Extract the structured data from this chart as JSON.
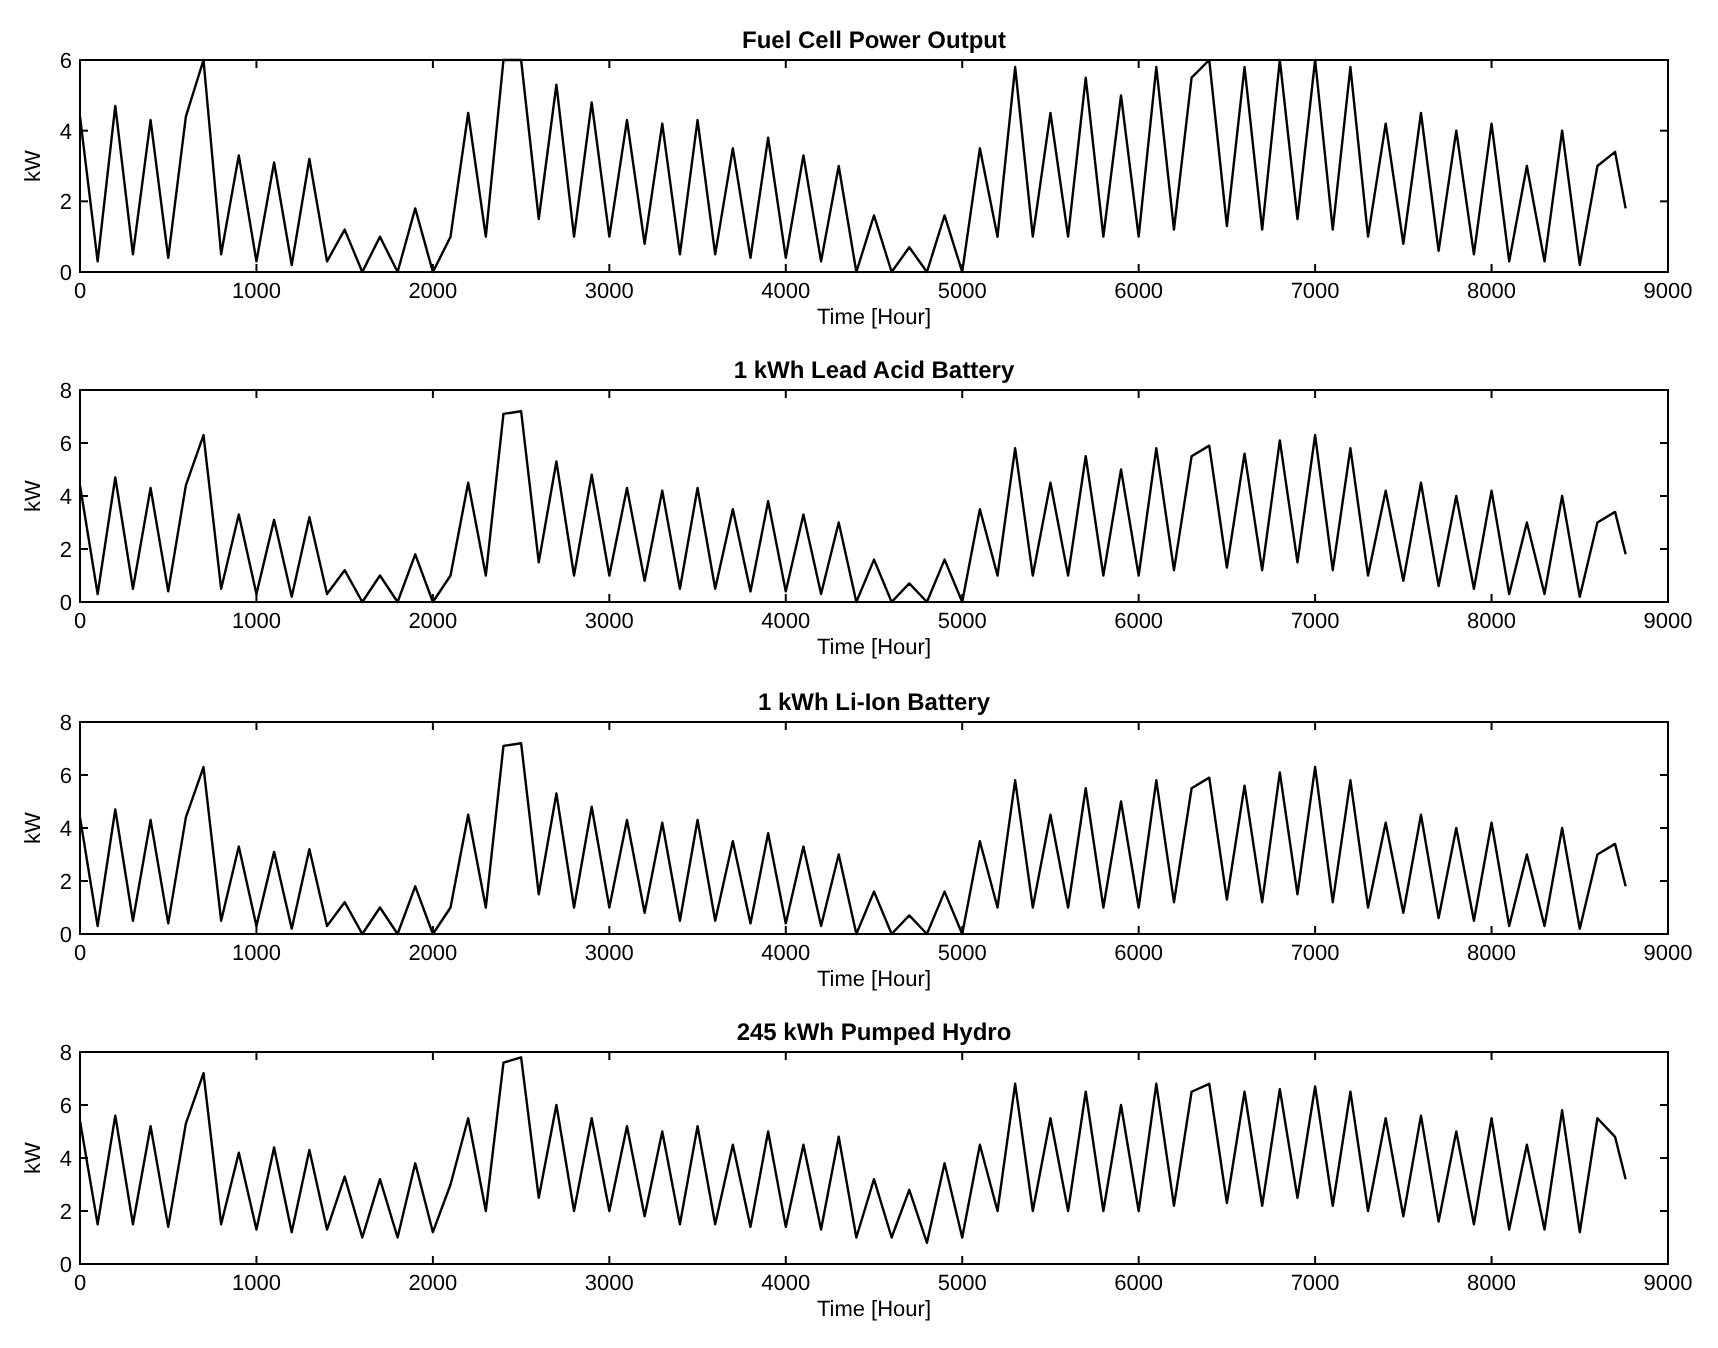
{
  "chart_data": [
    {
      "type": "line",
      "title": "Fuel Cell Power Output",
      "xlabel": "Time [Hour]",
      "ylabel": "kW",
      "xlim": [
        0,
        9000
      ],
      "xticks": [
        0,
        1000,
        2000,
        3000,
        4000,
        5000,
        6000,
        7000,
        8000,
        9000
      ],
      "ylim": [
        0,
        6
      ],
      "yticks": [
        0,
        2,
        4,
        6
      ],
      "x": [
        0,
        100,
        200,
        300,
        400,
        500,
        600,
        700,
        800,
        900,
        1000,
        1100,
        1200,
        1300,
        1400,
        1500,
        1600,
        1700,
        1800,
        1900,
        2000,
        2100,
        2200,
        2300,
        2400,
        2500,
        2600,
        2700,
        2800,
        2900,
        3000,
        3100,
        3200,
        3300,
        3400,
        3500,
        3600,
        3700,
        3800,
        3900,
        4000,
        4100,
        4200,
        4300,
        4400,
        4500,
        4600,
        4700,
        4800,
        4900,
        5000,
        5100,
        5200,
        5300,
        5400,
        5500,
        5600,
        5700,
        5800,
        5900,
        6000,
        6100,
        6200,
        6300,
        6400,
        6500,
        6600,
        6700,
        6800,
        6900,
        7000,
        7100,
        7200,
        7300,
        7400,
        7500,
        7600,
        7700,
        7800,
        7900,
        8000,
        8100,
        8200,
        8300,
        8400,
        8500,
        8600,
        8700,
        8760
      ],
      "series": [
        {
          "color": "#000000",
          "values": [
            4.4,
            0.3,
            4.7,
            0.5,
            4.3,
            0.4,
            4.4,
            6.0,
            0.5,
            3.3,
            0.3,
            3.1,
            0.2,
            3.2,
            0.3,
            1.2,
            0,
            1.0,
            0,
            1.8,
            0,
            1.0,
            4.5,
            1.0,
            6.0,
            6.0,
            1.5,
            5.3,
            1.0,
            4.8,
            1.0,
            4.3,
            0.8,
            4.2,
            0.5,
            4.3,
            0.5,
            3.5,
            0.4,
            3.8,
            0.4,
            3.3,
            0.3,
            3.0,
            0,
            1.6,
            0,
            0.7,
            0,
            1.6,
            0,
            3.5,
            1.0,
            5.8,
            1.0,
            4.5,
            1.0,
            5.5,
            1.0,
            5.0,
            1.0,
            5.8,
            1.2,
            5.5,
            6.0,
            1.3,
            5.8,
            1.2,
            6.0,
            1.5,
            6.0,
            1.2,
            5.8,
            1.0,
            4.2,
            0.8,
            4.5,
            0.6,
            4.0,
            0.5,
            4.2,
            0.3,
            3.0,
            0.3,
            4.0,
            0.2,
            3.0,
            3.4,
            1.8
          ]
        }
      ]
    },
    {
      "type": "line",
      "title": "1 kWh Lead Acid Battery",
      "xlabel": "Time [Hour]",
      "ylabel": "kW",
      "xlim": [
        0,
        9000
      ],
      "xticks": [
        0,
        1000,
        2000,
        3000,
        4000,
        5000,
        6000,
        7000,
        8000,
        9000
      ],
      "ylim": [
        0,
        8
      ],
      "yticks": [
        0,
        2,
        4,
        6,
        8
      ],
      "x": [
        0,
        100,
        200,
        300,
        400,
        500,
        600,
        700,
        800,
        900,
        1000,
        1100,
        1200,
        1300,
        1400,
        1500,
        1600,
        1700,
        1800,
        1900,
        2000,
        2100,
        2200,
        2300,
        2400,
        2500,
        2600,
        2700,
        2800,
        2900,
        3000,
        3100,
        3200,
        3300,
        3400,
        3500,
        3600,
        3700,
        3800,
        3900,
        4000,
        4100,
        4200,
        4300,
        4400,
        4500,
        4600,
        4700,
        4800,
        4900,
        5000,
        5100,
        5200,
        5300,
        5400,
        5500,
        5600,
        5700,
        5800,
        5900,
        6000,
        6100,
        6200,
        6300,
        6400,
        6500,
        6600,
        6700,
        6800,
        6900,
        7000,
        7100,
        7200,
        7300,
        7400,
        7500,
        7600,
        7700,
        7800,
        7900,
        8000,
        8100,
        8200,
        8300,
        8400,
        8500,
        8600,
        8700,
        8760
      ],
      "series": [
        {
          "color": "#000000",
          "values": [
            4.4,
            0.3,
            4.7,
            0.5,
            4.3,
            0.4,
            4.4,
            6.3,
            0.5,
            3.3,
            0.3,
            3.1,
            0.2,
            3.2,
            0.3,
            1.2,
            0,
            1.0,
            0,
            1.8,
            0,
            1.0,
            4.5,
            1.0,
            7.1,
            7.2,
            1.5,
            5.3,
            1.0,
            4.8,
            1.0,
            4.3,
            0.8,
            4.2,
            0.5,
            4.3,
            0.5,
            3.5,
            0.4,
            3.8,
            0.4,
            3.3,
            0.3,
            3.0,
            0,
            1.6,
            0,
            0.7,
            0,
            1.6,
            0,
            3.5,
            1.0,
            5.8,
            1.0,
            4.5,
            1.0,
            5.5,
            1.0,
            5.0,
            1.0,
            5.8,
            1.2,
            5.5,
            5.9,
            1.3,
            5.6,
            1.2,
            6.1,
            1.5,
            6.3,
            1.2,
            5.8,
            1.0,
            4.2,
            0.8,
            4.5,
            0.6,
            4.0,
            0.5,
            4.2,
            0.3,
            3.0,
            0.3,
            4.0,
            0.2,
            3.0,
            3.4,
            1.8
          ]
        }
      ]
    },
    {
      "type": "line",
      "title": "1 kWh Li-Ion Battery",
      "xlabel": "Time [Hour]",
      "ylabel": "kW",
      "xlim": [
        0,
        9000
      ],
      "xticks": [
        0,
        1000,
        2000,
        3000,
        4000,
        5000,
        6000,
        7000,
        8000,
        9000
      ],
      "ylim": [
        0,
        8
      ],
      "yticks": [
        0,
        2,
        4,
        6,
        8
      ],
      "x": [
        0,
        100,
        200,
        300,
        400,
        500,
        600,
        700,
        800,
        900,
        1000,
        1100,
        1200,
        1300,
        1400,
        1500,
        1600,
        1700,
        1800,
        1900,
        2000,
        2100,
        2200,
        2300,
        2400,
        2500,
        2600,
        2700,
        2800,
        2900,
        3000,
        3100,
        3200,
        3300,
        3400,
        3500,
        3600,
        3700,
        3800,
        3900,
        4000,
        4100,
        4200,
        4300,
        4400,
        4500,
        4600,
        4700,
        4800,
        4900,
        5000,
        5100,
        5200,
        5300,
        5400,
        5500,
        5600,
        5700,
        5800,
        5900,
        6000,
        6100,
        6200,
        6300,
        6400,
        6500,
        6600,
        6700,
        6800,
        6900,
        7000,
        7100,
        7200,
        7300,
        7400,
        7500,
        7600,
        7700,
        7800,
        7900,
        8000,
        8100,
        8200,
        8300,
        8400,
        8500,
        8600,
        8700,
        8760
      ],
      "series": [
        {
          "color": "#000000",
          "values": [
            4.4,
            0.3,
            4.7,
            0.5,
            4.3,
            0.4,
            4.4,
            6.3,
            0.5,
            3.3,
            0.3,
            3.1,
            0.2,
            3.2,
            0.3,
            1.2,
            0,
            1.0,
            0,
            1.8,
            0,
            1.0,
            4.5,
            1.0,
            7.1,
            7.2,
            1.5,
            5.3,
            1.0,
            4.8,
            1.0,
            4.3,
            0.8,
            4.2,
            0.5,
            4.3,
            0.5,
            3.5,
            0.4,
            3.8,
            0.4,
            3.3,
            0.3,
            3.0,
            0,
            1.6,
            0,
            0.7,
            0,
            1.6,
            0,
            3.5,
            1.0,
            5.8,
            1.0,
            4.5,
            1.0,
            5.5,
            1.0,
            5.0,
            1.0,
            5.8,
            1.2,
            5.5,
            5.9,
            1.3,
            5.6,
            1.2,
            6.1,
            1.5,
            6.3,
            1.2,
            5.8,
            1.0,
            4.2,
            0.8,
            4.5,
            0.6,
            4.0,
            0.5,
            4.2,
            0.3,
            3.0,
            0.3,
            4.0,
            0.2,
            3.0,
            3.4,
            1.8
          ]
        }
      ]
    },
    {
      "type": "line",
      "title": "245 kWh Pumped Hydro",
      "xlabel": "Time [Hour]",
      "ylabel": "kW",
      "xlim": [
        0,
        9000
      ],
      "xticks": [
        0,
        1000,
        2000,
        3000,
        4000,
        5000,
        6000,
        7000,
        8000,
        9000
      ],
      "ylim": [
        0,
        8
      ],
      "yticks": [
        0,
        2,
        4,
        6,
        8
      ],
      "x": [
        0,
        100,
        200,
        300,
        400,
        500,
        600,
        700,
        800,
        900,
        1000,
        1100,
        1200,
        1300,
        1400,
        1500,
        1600,
        1700,
        1800,
        1900,
        2000,
        2100,
        2200,
        2300,
        2400,
        2500,
        2600,
        2700,
        2800,
        2900,
        3000,
        3100,
        3200,
        3300,
        3400,
        3500,
        3600,
        3700,
        3800,
        3900,
        4000,
        4100,
        4200,
        4300,
        4400,
        4500,
        4600,
        4700,
        4800,
        4900,
        5000,
        5100,
        5200,
        5300,
        5400,
        5500,
        5600,
        5700,
        5800,
        5900,
        6000,
        6100,
        6200,
        6300,
        6400,
        6500,
        6600,
        6700,
        6800,
        6900,
        7000,
        7100,
        7200,
        7300,
        7400,
        7500,
        7600,
        7700,
        7800,
        7900,
        8000,
        8100,
        8200,
        8300,
        8400,
        8500,
        8600,
        8700,
        8760
      ],
      "series": [
        {
          "color": "#000000",
          "values": [
            5.4,
            1.5,
            5.6,
            1.5,
            5.2,
            1.4,
            5.3,
            7.2,
            1.5,
            4.2,
            1.3,
            4.4,
            1.2,
            4.3,
            1.3,
            3.3,
            1.0,
            3.2,
            1.0,
            3.8,
            1.2,
            3.0,
            5.5,
            2.0,
            7.6,
            7.8,
            2.5,
            6.0,
            2.0,
            5.5,
            2.0,
            5.2,
            1.8,
            5.0,
            1.5,
            5.2,
            1.5,
            4.5,
            1.4,
            5.0,
            1.4,
            4.5,
            1.3,
            4.8,
            1.0,
            3.2,
            1.0,
            2.8,
            0.8,
            3.8,
            1.0,
            4.5,
            2.0,
            6.8,
            2.0,
            5.5,
            2.0,
            6.5,
            2.0,
            6.0,
            2.0,
            6.8,
            2.2,
            6.5,
            6.8,
            2.3,
            6.5,
            2.2,
            6.6,
            2.5,
            6.7,
            2.2,
            6.5,
            2.0,
            5.5,
            1.8,
            5.6,
            1.6,
            5.0,
            1.5,
            5.5,
            1.3,
            4.5,
            1.3,
            5.8,
            1.2,
            5.5,
            4.8,
            3.2
          ]
        }
      ]
    }
  ]
}
